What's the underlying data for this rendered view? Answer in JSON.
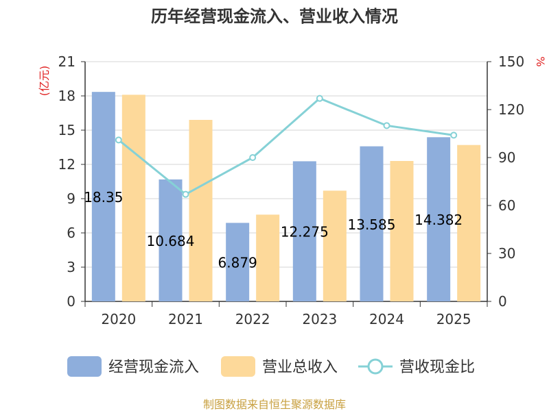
{
  "chart_data": {
    "type": "bar",
    "title": "历年经营现金流入、营业收入情况",
    "left_unit": "(亿元)",
    "right_unit": "%",
    "categories": [
      "2020",
      "2021",
      "2022",
      "2023",
      "2024",
      "2025"
    ],
    "ylim_left": [
      0,
      21
    ],
    "yticks_left": [
      0,
      3,
      6,
      9,
      12,
      15,
      18,
      21
    ],
    "ylim_right": [
      0,
      150
    ],
    "yticks_right": [
      0,
      30,
      60,
      90,
      120,
      150
    ],
    "grid": true,
    "legend_position": "bottom",
    "series": [
      {
        "name": "经营现金流入",
        "kind": "bar",
        "axis": "left",
        "color": "#8eaedc",
        "values": [
          18.35,
          10.684,
          6.879,
          12.275,
          13.585,
          14.382
        ],
        "labels": [
          "18.35",
          "10.684",
          "6.879",
          "12.275",
          "13.585",
          "14.382"
        ]
      },
      {
        "name": "营业总收入",
        "kind": "bar",
        "axis": "left",
        "color": "#fdd99a",
        "values": [
          18.1,
          15.9,
          7.6,
          9.7,
          12.3,
          13.7
        ]
      },
      {
        "name": "营收现金比",
        "kind": "line",
        "axis": "right",
        "color": "#85d1d6",
        "values": [
          101,
          67,
          90,
          127,
          110,
          104
        ]
      }
    ]
  },
  "source": "制图数据来自恒生聚源数据库"
}
